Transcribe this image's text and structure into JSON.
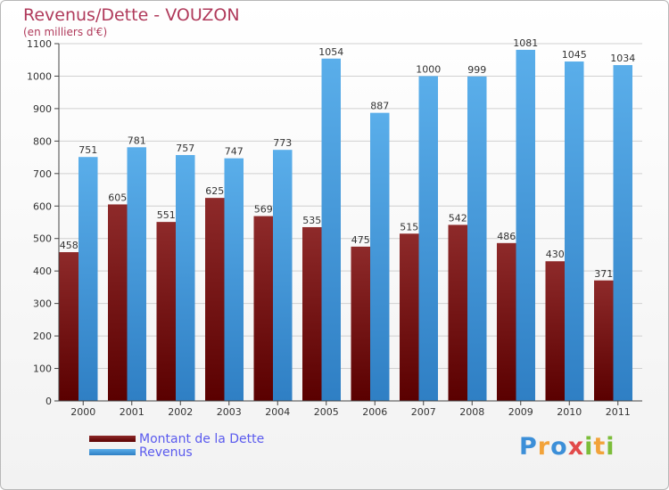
{
  "title": "Revenus/Dette - VOUZON",
  "subtitle": "(en milliers d'€)",
  "brand": {
    "letters": [
      "P",
      "r",
      "o",
      "x",
      "i",
      "t",
      "i"
    ],
    "colors": [
      "#3c8fd8",
      "#f2a33a",
      "#3c8fd8",
      "#e24a4a",
      "#7cbd3a",
      "#f2a33a",
      "#7cbd3a"
    ]
  },
  "chart_data": {
    "type": "bar",
    "title": "Revenus/Dette - VOUZON",
    "subtitle": "(en milliers d'€)",
    "categories": [
      "2000",
      "2001",
      "2002",
      "2003",
      "2004",
      "2005",
      "2006",
      "2007",
      "2008",
      "2009",
      "2010",
      "2011"
    ],
    "series": [
      {
        "name": "Montant de la Dette",
        "color": "#7a1a1a",
        "values": [
          458,
          605,
          551,
          625,
          569,
          535,
          475,
          515,
          542,
          486,
          430,
          371
        ]
      },
      {
        "name": "Revenus",
        "color": "#4a9ee0",
        "values": [
          751,
          781,
          757,
          747,
          773,
          1054,
          887,
          1000,
          999,
          1081,
          1045,
          1034
        ]
      }
    ],
    "ylim": [
      0,
      1100
    ],
    "yticks": [
      0,
      100,
      200,
      300,
      400,
      500,
      600,
      700,
      800,
      900,
      1000,
      1100
    ],
    "grid": true,
    "legend": "bottom-left"
  }
}
